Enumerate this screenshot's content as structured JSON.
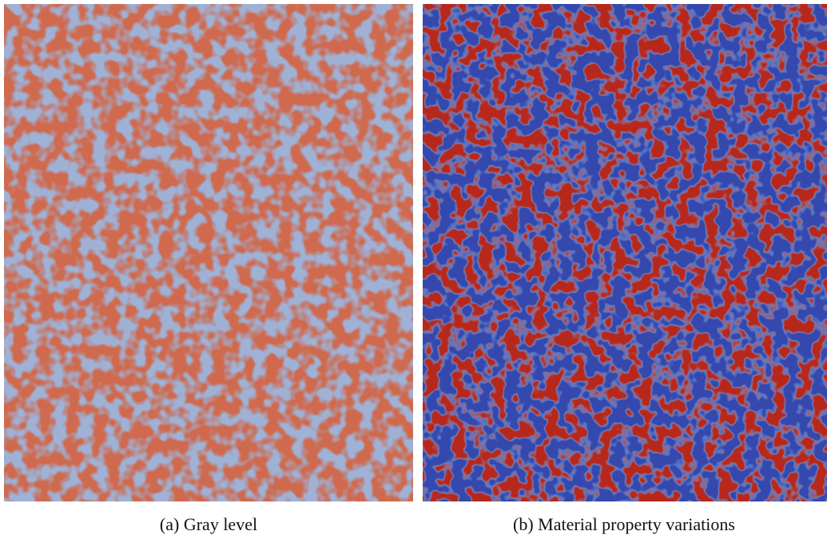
{
  "figure": {
    "panels": [
      {
        "caption": "(a) Gray level"
      },
      {
        "caption": "(b) Material property variations"
      }
    ]
  }
}
